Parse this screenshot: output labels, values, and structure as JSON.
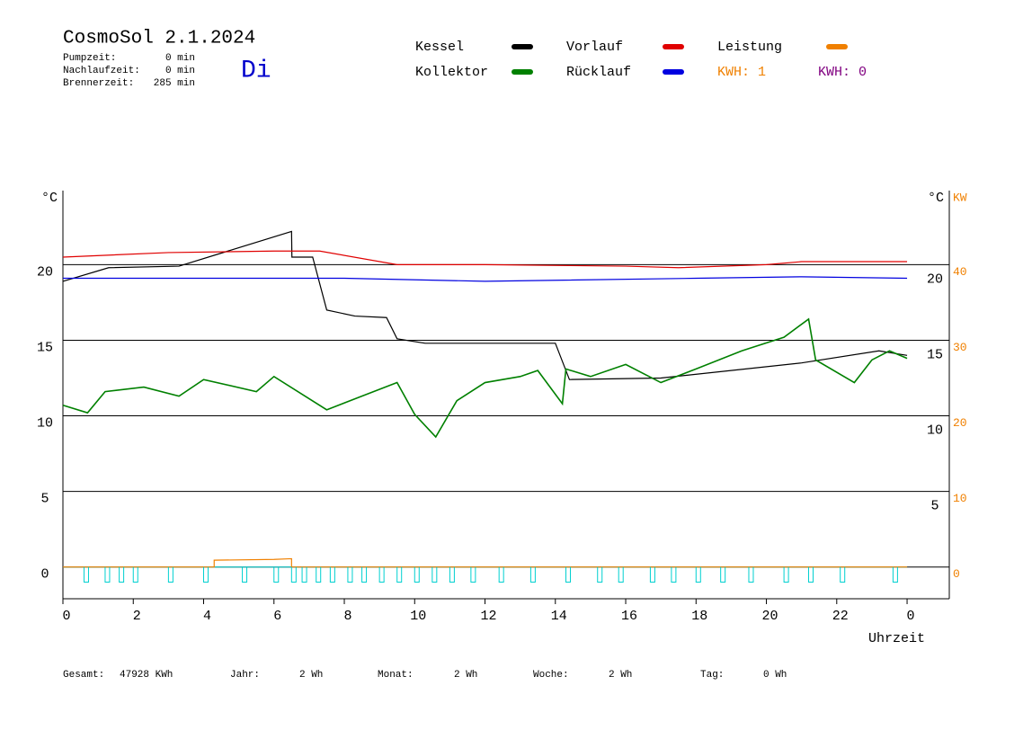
{
  "header": {
    "title": "CosmoSol 2.1.2024",
    "day": "Di",
    "stats": [
      [
        "Pumpzeit:",
        "0 min"
      ],
      [
        "Nachlaufzeit:",
        "0 min"
      ],
      [
        "Brennerzeit:",
        "285 min"
      ]
    ],
    "kwh": [
      "KWH: 1",
      "KWH: 0"
    ]
  },
  "chart_data": {
    "type": "line",
    "y_unit": "°C",
    "y_unit_right": "°C",
    "y2_unit": "KW",
    "xlabel": "Uhrzeit",
    "xlim": [
      0,
      25.2
    ],
    "ylim": [
      -2.1,
      24.9
    ],
    "y2lim": [
      -4.2,
      49.8
    ],
    "xticks": [
      0,
      2,
      4,
      6,
      8,
      10,
      12,
      14,
      16,
      18,
      20,
      22,
      {
        "value": 24,
        "label": "0"
      }
    ],
    "yticks": [
      0,
      5,
      10,
      15,
      20
    ],
    "yticks_right": [
      5,
      10,
      15,
      20
    ],
    "y2ticks": [
      0,
      10,
      20,
      30,
      40
    ],
    "grid": true,
    "series": [
      {
        "name": "Kessel",
        "color": "#000000",
        "x": [
          0,
          1.3,
          3.3,
          6.5,
          6.51,
          7.1,
          7.5,
          8.3,
          9.2,
          9.5,
          10.3,
          14.0,
          14.4,
          17,
          21,
          23.2,
          24
        ],
        "values": [
          18.9,
          19.8,
          19.9,
          22.2,
          20.5,
          20.5,
          17.0,
          16.6,
          16.5,
          15.1,
          14.8,
          14.8,
          12.4,
          12.5,
          13.5,
          14.3,
          14.0
        ]
      },
      {
        "name": "Kollektor",
        "color": "#008000",
        "x": [
          0,
          0.7,
          1.2,
          2.3,
          3.3,
          4,
          5.5,
          6,
          7.5,
          8.5,
          9.5,
          10,
          10.6,
          11.2,
          12,
          13,
          13.5,
          14.2,
          14.3,
          15,
          16,
          17,
          18,
          19.3,
          20.5,
          21.2,
          21.4,
          22.5,
          23,
          23.5,
          24
        ],
        "values": [
          10.7,
          10.2,
          11.6,
          11.9,
          11.3,
          12.4,
          11.6,
          12.6,
          10.4,
          11.3,
          12.2,
          10.1,
          8.6,
          11.0,
          12.2,
          12.6,
          13.0,
          10.8,
          13.1,
          12.6,
          13.4,
          12.2,
          13.1,
          14.3,
          15.2,
          16.4,
          13.7,
          12.2,
          13.7,
          14.3,
          13.8
        ]
      },
      {
        "name": "Vorlauf",
        "color": "#e00000",
        "x": [
          0,
          3,
          6,
          7.3,
          9.5,
          12,
          16,
          17.5,
          20,
          21,
          24
        ],
        "values": [
          20.5,
          20.8,
          20.9,
          20.9,
          20.0,
          20.0,
          19.9,
          19.8,
          20.0,
          20.2,
          20.2
        ]
      },
      {
        "name": "Rücklauf",
        "color": "#0000e0",
        "x": [
          0,
          8,
          12,
          18,
          21,
          24
        ],
        "values": [
          19.1,
          19.1,
          18.9,
          19.1,
          19.2,
          19.1
        ]
      },
      {
        "name": "Leistung",
        "color": "#f08000",
        "axis": "y2",
        "x": [
          0,
          4.3,
          4.3,
          6.0,
          6.5,
          6.5,
          24
        ],
        "values": [
          0,
          0,
          0.9,
          1.0,
          1.1,
          0,
          0
        ]
      },
      {
        "color": "#00d0d0",
        "x": [
          0.6,
          1.2,
          1.6,
          2.0,
          3.0,
          4.0,
          5.1,
          6.0,
          6.5,
          6.8,
          7.2,
          7.6,
          8.1,
          8.5,
          9.0,
          9.5,
          10.0,
          10.5,
          11.0,
          11.6,
          12.4,
          13.3,
          14.3,
          15.2,
          15.8,
          16.7,
          17.3,
          18.0,
          18.7,
          19.5,
          20.5,
          21.2,
          22.1,
          23.6
        ],
        "values": [
          -1,
          -1,
          -1,
          -1,
          -1,
          -1,
          -1,
          -1,
          -1,
          -1,
          -1,
          -1,
          -1,
          -1,
          -1,
          -1,
          -1,
          -1,
          -1,
          -1,
          -1,
          -1,
          -1,
          -1,
          -1,
          -1,
          -1,
          -1,
          -1,
          -1,
          -1,
          -1,
          -1,
          -1
        ]
      }
    ]
  },
  "footer": [
    [
      "Gesamt:",
      "47928 KWh"
    ],
    [
      "Jahr:",
      "2 Wh"
    ],
    [
      "Monat:",
      "2 Wh"
    ],
    [
      "Woche:",
      "2 Wh"
    ],
    [
      "Tag:",
      "0 Wh"
    ]
  ]
}
